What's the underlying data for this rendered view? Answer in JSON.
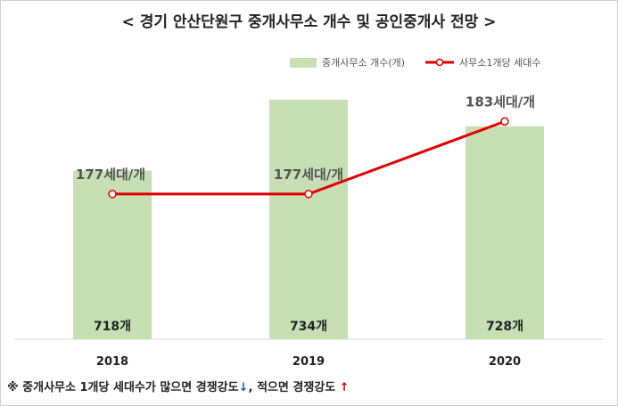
{
  "title": "< 경기 안산단원구 중개사무소 개수 및 공인중개사 전망 >",
  "legend": {
    "bar_label": "중개사무소 개수(개)",
    "line_label": "사무소1개당 세대수"
  },
  "note": {
    "prefix": "※ 중개사무소 1개당 세대수가 많으면 경쟁강도",
    "down_arrow": "↓",
    "middle": ", 적으면 경쟁강도 ",
    "up_arrow": "↑"
  },
  "colors": {
    "bar": "#c6e0b4",
    "line": "#e00000",
    "marker_fill": "#ffffff"
  },
  "chart_data": {
    "type": "bar",
    "categories": [
      "2018",
      "2019",
      "2020"
    ],
    "series": [
      {
        "name": "중개사무소 개수(개)",
        "type": "bar",
        "values": [
          718,
          734,
          728
        ],
        "labels": [
          "718개",
          "734개",
          "728개"
        ]
      },
      {
        "name": "사무소1개당 세대수",
        "type": "line",
        "values": [
          177,
          177,
          183
        ],
        "labels": [
          "177세대/개",
          "177세대/개",
          "183세대/개"
        ]
      }
    ],
    "bar_axis_range": [
      680,
      740
    ],
    "line_axis_range": [
      165,
      187
    ],
    "grid": false,
    "legend_position": "top-right"
  }
}
